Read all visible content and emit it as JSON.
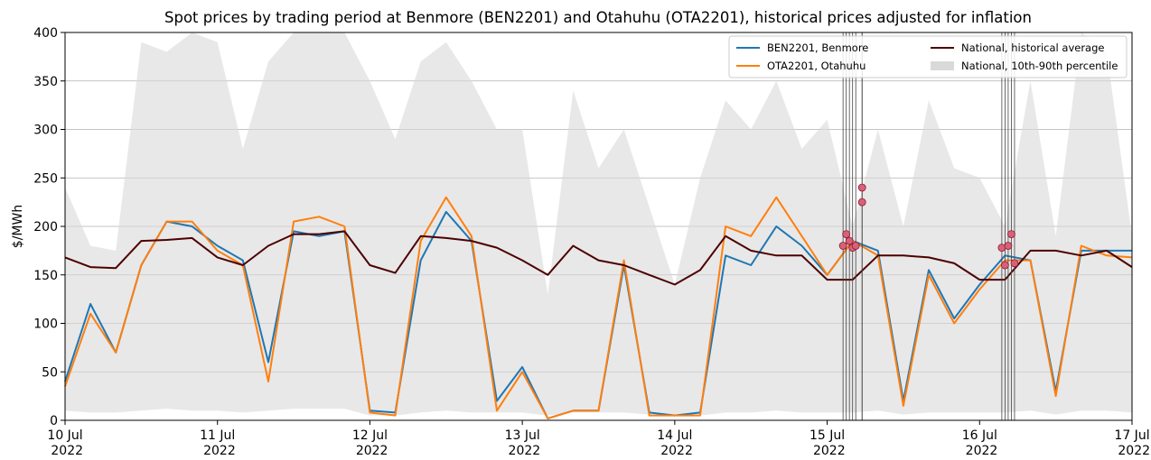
{
  "chart_data": {
    "type": "line",
    "title": "Spot prices by trading period at Benmore (BEN2201) and Otahuhu (OTA2201), historical prices adjusted for inflation",
    "y_label": "$/MWh",
    "x": [
      "2022-07-10T00:00",
      "2022-07-10T04:00",
      "2022-07-10T08:00",
      "2022-07-10T12:00",
      "2022-07-10T16:00",
      "2022-07-10T20:00",
      "2022-07-11T00:00",
      "2022-07-11T04:00",
      "2022-07-11T08:00",
      "2022-07-11T12:00",
      "2022-07-11T16:00",
      "2022-07-11T20:00",
      "2022-07-12T00:00",
      "2022-07-12T04:00",
      "2022-07-12T08:00",
      "2022-07-12T12:00",
      "2022-07-12T16:00",
      "2022-07-12T20:00",
      "2022-07-13T00:00",
      "2022-07-13T04:00",
      "2022-07-13T08:00",
      "2022-07-13T12:00",
      "2022-07-13T16:00",
      "2022-07-13T20:00",
      "2022-07-14T00:00",
      "2022-07-14T04:00",
      "2022-07-14T08:00",
      "2022-07-14T12:00",
      "2022-07-14T16:00",
      "2022-07-14T20:00",
      "2022-07-15T00:00",
      "2022-07-15T04:00",
      "2022-07-15T08:00",
      "2022-07-15T12:00",
      "2022-07-15T16:00",
      "2022-07-15T20:00",
      "2022-07-16T00:00",
      "2022-07-16T04:00",
      "2022-07-16T08:00",
      "2022-07-16T12:00",
      "2022-07-16T16:00",
      "2022-07-16T20:00",
      "2022-07-17T00:00"
    ],
    "series": [
      {
        "name": "BEN2201, Benmore",
        "color": "#1f77b4",
        "values": [
          40,
          120,
          70,
          160,
          205,
          200,
          180,
          165,
          60,
          195,
          190,
          195,
          10,
          8,
          165,
          215,
          185,
          20,
          55,
          2,
          10,
          10,
          160,
          8,
          5,
          8,
          170,
          160,
          200,
          180,
          150,
          185,
          175,
          20,
          155,
          105,
          140,
          170,
          165,
          30,
          175,
          175,
          175
        ]
      },
      {
        "name": "OTA2201, Otahuhu",
        "color": "#ff7f0e",
        "values": [
          35,
          110,
          70,
          160,
          205,
          205,
          175,
          160,
          40,
          205,
          210,
          200,
          8,
          5,
          185,
          230,
          190,
          10,
          50,
          2,
          10,
          10,
          165,
          5,
          5,
          5,
          200,
          190,
          230,
          190,
          150,
          185,
          170,
          15,
          150,
          100,
          135,
          165,
          165,
          25,
          180,
          170,
          168
        ]
      },
      {
        "name": "National, historical average",
        "color": "#4d0000",
        "values": [
          168,
          158,
          157,
          185,
          186,
          188,
          168,
          160,
          180,
          192,
          192,
          195,
          160,
          152,
          190,
          188,
          185,
          178,
          165,
          150,
          180,
          165,
          160,
          150,
          140,
          155,
          190,
          175,
          170,
          170,
          145,
          145,
          170,
          170,
          168,
          162,
          145,
          145,
          175,
          175,
          170,
          175,
          158
        ]
      },
      {
        "name": "National, 10th-90th percentile",
        "color": "#d9d9d9",
        "type": "band",
        "upper": [
          240,
          180,
          175,
          390,
          380,
          400,
          390,
          280,
          370,
          400,
          400,
          400,
          350,
          290,
          370,
          390,
          350,
          300,
          300,
          130,
          340,
          260,
          300,
          220,
          140,
          250,
          330,
          300,
          350,
          280,
          310,
          200,
          300,
          200,
          330,
          260,
          250,
          200,
          350,
          190,
          400,
          380,
          190
        ],
        "lower": [
          10,
          8,
          8,
          10,
          12,
          10,
          10,
          8,
          10,
          12,
          12,
          12,
          5,
          5,
          8,
          10,
          8,
          8,
          8,
          5,
          8,
          8,
          8,
          6,
          5,
          5,
          8,
          8,
          10,
          8,
          8,
          8,
          10,
          6,
          8,
          8,
          8,
          8,
          10,
          6,
          10,
          10,
          8
        ]
      }
    ],
    "highlight": {
      "color": "#d9607a",
      "x": [
        "2022-07-15T02:30",
        "2022-07-15T03:00",
        "2022-07-15T03:30",
        "2022-07-15T04:00",
        "2022-07-15T04:30",
        "2022-07-15T05:30",
        "2022-07-15T05:30",
        "2022-07-16T03:30",
        "2022-07-16T04:00",
        "2022-07-16T04:30",
        "2022-07-16T05:00",
        "2022-07-16T05:30"
      ],
      "y": [
        180,
        192,
        185,
        178,
        180,
        240,
        225,
        178,
        160,
        180,
        192,
        162
      ]
    },
    "xlim": [
      "2022-07-10T00:00",
      "2022-07-17T00:00"
    ],
    "xticks": [
      {
        "value": "2022-07-10T00:00",
        "label": "10 Jul 2022"
      },
      {
        "value": "2022-07-11T00:00",
        "label": "11 Jul 2022"
      },
      {
        "value": "2022-07-12T00:00",
        "label": "12 Jul 2022"
      },
      {
        "value": "2022-07-13T00:00",
        "label": "13 Jul 2022"
      },
      {
        "value": "2022-07-14T00:00",
        "label": "14 Jul 2022"
      },
      {
        "value": "2022-07-15T00:00",
        "label": "15 Jul 2022"
      },
      {
        "value": "2022-07-16T00:00",
        "label": "16 Jul 2022"
      },
      {
        "value": "2022-07-17T00:00",
        "label": "17 Jul 2022"
      }
    ],
    "ylim": [
      0,
      400
    ],
    "yticks": [
      0,
      50,
      100,
      150,
      200,
      250,
      300,
      350,
      400
    ],
    "grid": true,
    "legend": "upper right"
  }
}
